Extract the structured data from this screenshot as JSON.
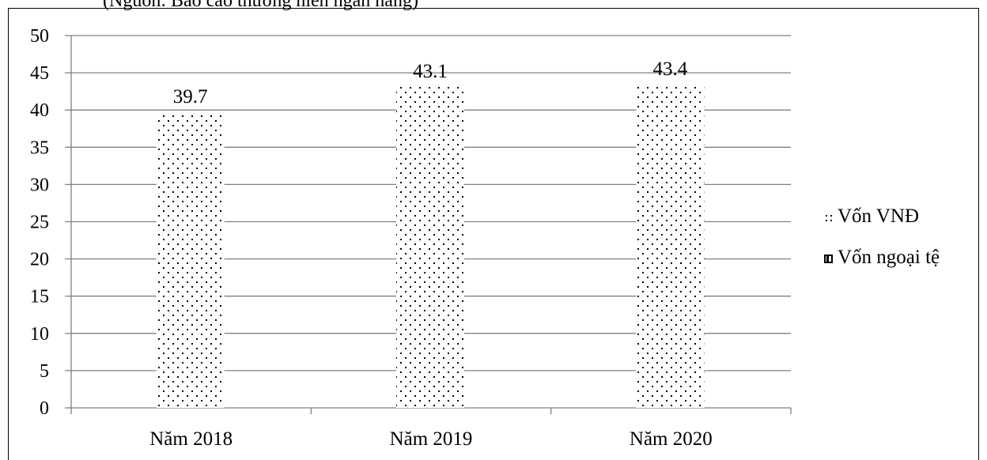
{
  "header": {
    "partial_text": "(Nguồn: Báo cáo thường niên ngân hàng)"
  },
  "colors": {
    "bar_pattern": "#000000",
    "grid": "#808080",
    "axis": "#808080"
  },
  "chart_data": {
    "type": "bar",
    "categories": [
      "Năm 2018",
      "Năm 2019",
      "Năm 2020"
    ],
    "series": [
      {
        "name": "Vốn VNĐ",
        "values": [
          39.7,
          43.1,
          43.4
        ],
        "pattern": "dots"
      },
      {
        "name": "Vốn ngoại tệ",
        "values": [
          null,
          null,
          null
        ],
        "pattern": "checker"
      }
    ],
    "data_labels": [
      "39.7",
      "43.1",
      "43.4"
    ],
    "ylim": [
      0,
      50
    ],
    "yticks": [
      "0",
      "5",
      "10",
      "15",
      "20",
      "25",
      "30",
      "35",
      "40",
      "45",
      "50"
    ],
    "grid": true,
    "legend_position": "right"
  }
}
